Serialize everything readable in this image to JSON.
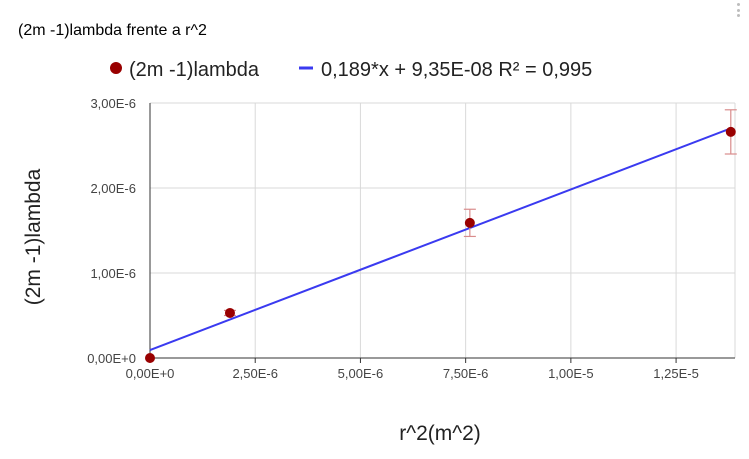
{
  "chart_data": {
    "type": "scatter",
    "title": "(2m -1)lambda frente a r^2",
    "xlabel": "r^2(m^2)",
    "ylabel": "(2m -1)lambda",
    "xlim": [
      0,
      1.39e-05
    ],
    "ylim": [
      0,
      3e-06
    ],
    "xticks": [
      0,
      2.5e-06,
      5e-06,
      7.5e-06,
      1e-05,
      1.25e-05
    ],
    "xtick_labels": [
      "0,00E+0",
      "2,50E-6",
      "5,00E-6",
      "7,50E-6",
      "1,00E-5",
      "1,25E-5"
    ],
    "yticks": [
      0,
      1e-06,
      2e-06,
      3e-06
    ],
    "ytick_labels": [
      "0,00E+0",
      "1,00E-6",
      "2,00E-6",
      "3,00E-6"
    ],
    "grid": true,
    "legend_position": "top",
    "series": [
      {
        "name": "(2m -1)lambda",
        "kind": "points",
        "color": "#990000",
        "points": [
          {
            "x": 0,
            "y": 0,
            "err": 0
          },
          {
            "x": 1.9e-06,
            "y": 5.3e-07,
            "err": 3e-08
          },
          {
            "x": 7.6e-06,
            "y": 1.59e-06,
            "err": 1.6e-07
          },
          {
            "x": 1.38e-05,
            "y": 2.66e-06,
            "err": 2.6e-07
          }
        ]
      },
      {
        "name": "0,189*x + 9,35E-08 R² = 0,995",
        "kind": "trendline",
        "color": "#3a3af0",
        "slope": 0.189,
        "intercept": 9.35e-08
      }
    ],
    "errorbar_color": "#d98c8c",
    "grid_color": "#d9d9d9",
    "axis_color": "#333333"
  }
}
